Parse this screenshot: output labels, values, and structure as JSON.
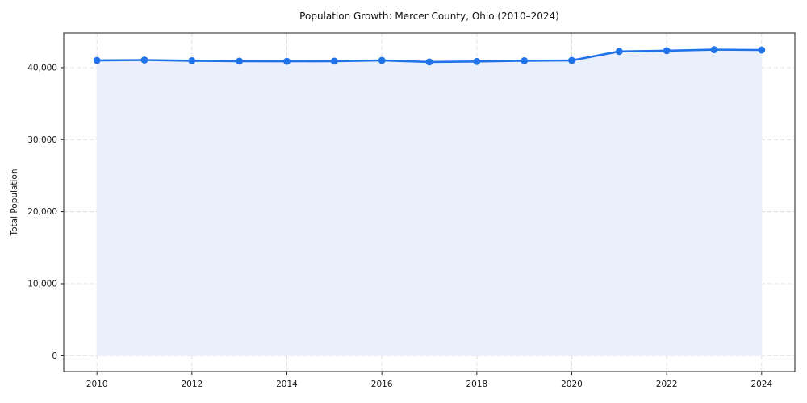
{
  "figure": {
    "background_color": "#ffffff"
  },
  "chart_data": {
    "type": "line",
    "title": "Population Growth: Mercer County, Ohio (2010–2024)",
    "xlabel": "",
    "ylabel": "Total Population",
    "x": [
      2010,
      2011,
      2012,
      2013,
      2014,
      2015,
      2016,
      2017,
      2018,
      2019,
      2020,
      2021,
      2022,
      2023,
      2024
    ],
    "series": [
      {
        "name": "Total Population",
        "values": [
          41000,
          41050,
          40950,
          40900,
          40870,
          40900,
          41000,
          40780,
          40850,
          40950,
          41000,
          42250,
          42350,
          42500,
          42450
        ]
      }
    ],
    "xticks": [
      2010,
      2012,
      2014,
      2016,
      2018,
      2020,
      2022,
      2024
    ],
    "xtick_labels": [
      "2010",
      "2012",
      "2014",
      "2016",
      "2018",
      "2020",
      "2022",
      "2024"
    ],
    "yticks": [
      0,
      10000,
      20000,
      30000,
      40000
    ],
    "ytick_labels": [
      "0",
      "10,000",
      "20,000",
      "30,000",
      "40,000"
    ],
    "xlim": [
      2009.3,
      2024.7
    ],
    "ylim": [
      -2200,
      44800
    ],
    "grid": true,
    "grid_style": "dashed",
    "legend": "none",
    "area_fill_from": 0,
    "colors": {
      "line": "#2072e8",
      "marker": "#2072e8",
      "area_fill": "#e9f0fc",
      "grid": "#dcdcdc",
      "spine": "#1c1c1c",
      "tick_text": "#1a1a1a",
      "title_text": "#111111"
    }
  }
}
